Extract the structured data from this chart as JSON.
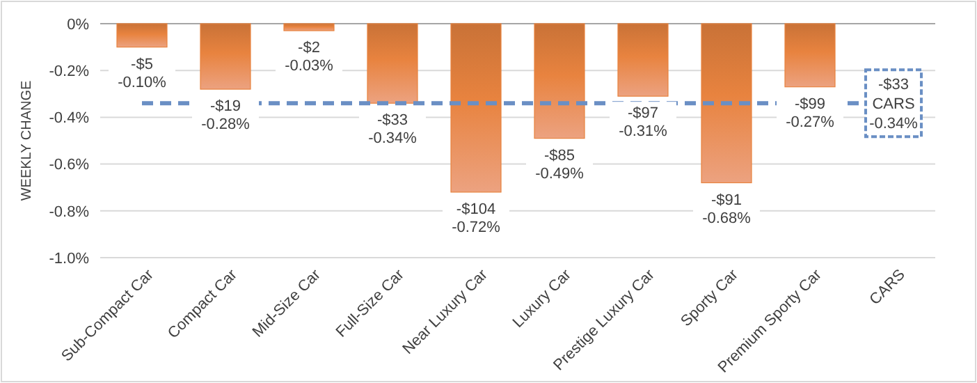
{
  "chart_data": {
    "type": "bar",
    "ylabel": "WEEKLY CHANGE",
    "categories": [
      "Sub-Compact Car",
      "Compact Car",
      "Mid-Size Car",
      "Full-Size Car",
      "Near Luxury Car",
      "Luxury Car",
      "Prestige Luxury Car",
      "Sporty Car",
      "Premium Sporty Car",
      "CARS"
    ],
    "values": [
      -0.1,
      -0.28,
      -0.03,
      -0.34,
      -0.72,
      -0.49,
      -0.31,
      -0.68,
      -0.27,
      null
    ],
    "value_labels": [
      "-$5\n-0.10%",
      "-$19\n-0.28%",
      "-$2\n-0.03%",
      "-$33\n-0.34%",
      "-$104\n-0.72%",
      "-$85\n-0.49%",
      "-$97\n-0.31%",
      "-$91\n-0.68%",
      "-$99\n-0.27%",
      null
    ],
    "color": "#e8833f",
    "ylim": [
      -1.0,
      0
    ],
    "yticks": [
      {
        "value": 0,
        "label": "0%"
      },
      {
        "value": -0.2,
        "label": "-0.2%"
      },
      {
        "value": -0.4,
        "label": "-0.4%"
      },
      {
        "value": -0.6,
        "label": "-0.6%"
      },
      {
        "value": -0.8,
        "label": "-0.8%"
      },
      {
        "value": -1.0,
        "label": "-1.0%"
      }
    ],
    "grid": "y",
    "ref_lines": [
      {
        "axis": "y",
        "value": -0.34,
        "label": "-$33\nCARS\n-0.34%",
        "color": "#6a8fc4",
        "line_style": "dashed"
      }
    ]
  }
}
